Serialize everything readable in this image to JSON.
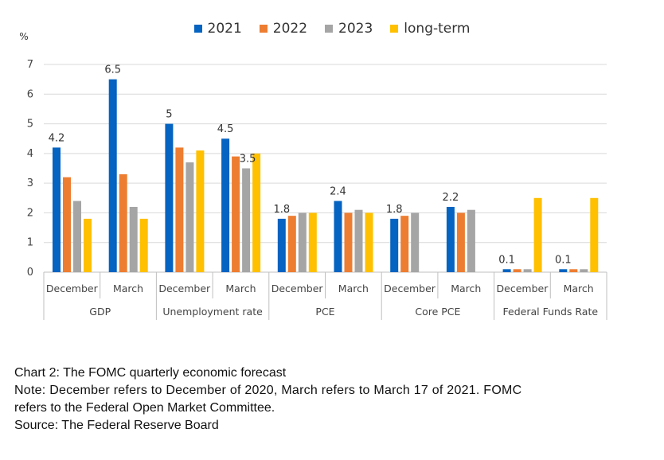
{
  "chart_data": {
    "type": "bar",
    "y_unit_label": "%",
    "ylim": [
      0,
      7
    ],
    "yticks": [
      0,
      1,
      2,
      3,
      4,
      5,
      6,
      7
    ],
    "grid": true,
    "legend_position": "top-center",
    "series": [
      {
        "name": "2021",
        "color": "#0563C1"
      },
      {
        "name": "2022",
        "color": "#ED7D31"
      },
      {
        "name": "2023",
        "color": "#A5A5A5"
      },
      {
        "name": "long-term",
        "color": "#FFC000"
      }
    ],
    "groups": [
      {
        "name": "GDP",
        "subgroups": [
          {
            "label": "December",
            "values": [
              4.2,
              3.2,
              2.4,
              1.8
            ],
            "data_label": "4.2"
          },
          {
            "label": "March",
            "values": [
              6.5,
              3.3,
              2.2,
              1.8
            ],
            "data_label": "6.5"
          }
        ]
      },
      {
        "name": "Unemployment rate",
        "subgroups": [
          {
            "label": "December",
            "values": [
              5.0,
              4.2,
              3.7,
              4.1
            ],
            "data_label": "5"
          },
          {
            "label": "March",
            "values": [
              4.5,
              3.9,
              3.5,
              4.0
            ],
            "data_label": "4.5",
            "extra_label": {
              "series": 2,
              "text": "3.5"
            }
          }
        ]
      },
      {
        "name": "PCE",
        "subgroups": [
          {
            "label": "December",
            "values": [
              1.8,
              1.9,
              2.0,
              2.0
            ],
            "data_label": "1.8"
          },
          {
            "label": "March",
            "values": [
              2.4,
              2.0,
              2.1,
              2.0
            ],
            "data_label": "2.4"
          }
        ]
      },
      {
        "name": "Core PCE",
        "subgroups": [
          {
            "label": "December",
            "values": [
              1.8,
              1.9,
              2.0,
              null
            ],
            "data_label": "1.8"
          },
          {
            "label": "March",
            "values": [
              2.2,
              2.0,
              2.1,
              null
            ],
            "data_label": "2.2"
          }
        ]
      },
      {
        "name": "Federal Funds Rate",
        "subgroups": [
          {
            "label": "December",
            "values": [
              0.1,
              0.1,
              0.1,
              2.5
            ],
            "data_label": "0.1"
          },
          {
            "label": "March",
            "values": [
              0.1,
              0.1,
              0.1,
              2.5
            ],
            "data_label": "0.1"
          }
        ]
      }
    ]
  },
  "caption": {
    "title": "Chart 2: The FOMC quarterly economic forecast",
    "note_line1": "Note: December refers to December of 2020, March refers to March 17 of 2021. FOMC",
    "note_line2": "refers to the Federal  Open Market Committee.",
    "source": "Source: The Federal Reserve Board"
  }
}
